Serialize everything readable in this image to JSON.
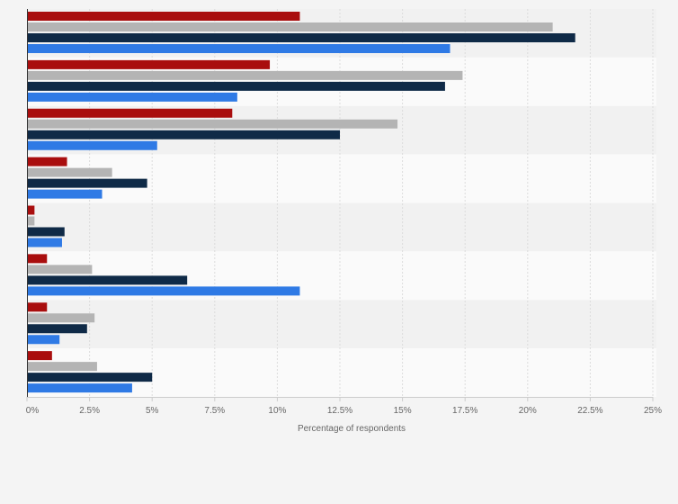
{
  "chart_data": {
    "type": "bar",
    "orientation": "horizontal",
    "xlabel": "Percentage of respondents",
    "xlim": [
      0,
      25
    ],
    "x_ticks": [
      "0%",
      "2.5%",
      "5%",
      "7.5%",
      "10%",
      "12.5%",
      "15%",
      "17.5%",
      "20%",
      "22.5%",
      "25%"
    ],
    "x_tick_values": [
      0,
      2.5,
      5,
      7.5,
      10,
      12.5,
      15,
      17.5,
      20,
      22.5,
      25
    ],
    "grid": "vertical",
    "category_count": 8,
    "series": [
      {
        "color": "#a90e0e",
        "values": [
          10.9,
          9.7,
          8.2,
          1.6,
          0.3,
          0.8,
          0.8,
          1.0
        ]
      },
      {
        "color": "#b4b4b4",
        "values": [
          21.0,
          17.4,
          14.8,
          3.4,
          0.3,
          2.6,
          2.7,
          2.8
        ]
      },
      {
        "color": "#0f2a47",
        "values": [
          21.9,
          16.7,
          12.5,
          4.8,
          1.5,
          6.4,
          2.4,
          5.0
        ]
      },
      {
        "color": "#2f7ae5",
        "values": [
          16.9,
          8.4,
          5.2,
          3.0,
          1.4,
          10.9,
          1.3,
          4.2
        ]
      }
    ]
  }
}
